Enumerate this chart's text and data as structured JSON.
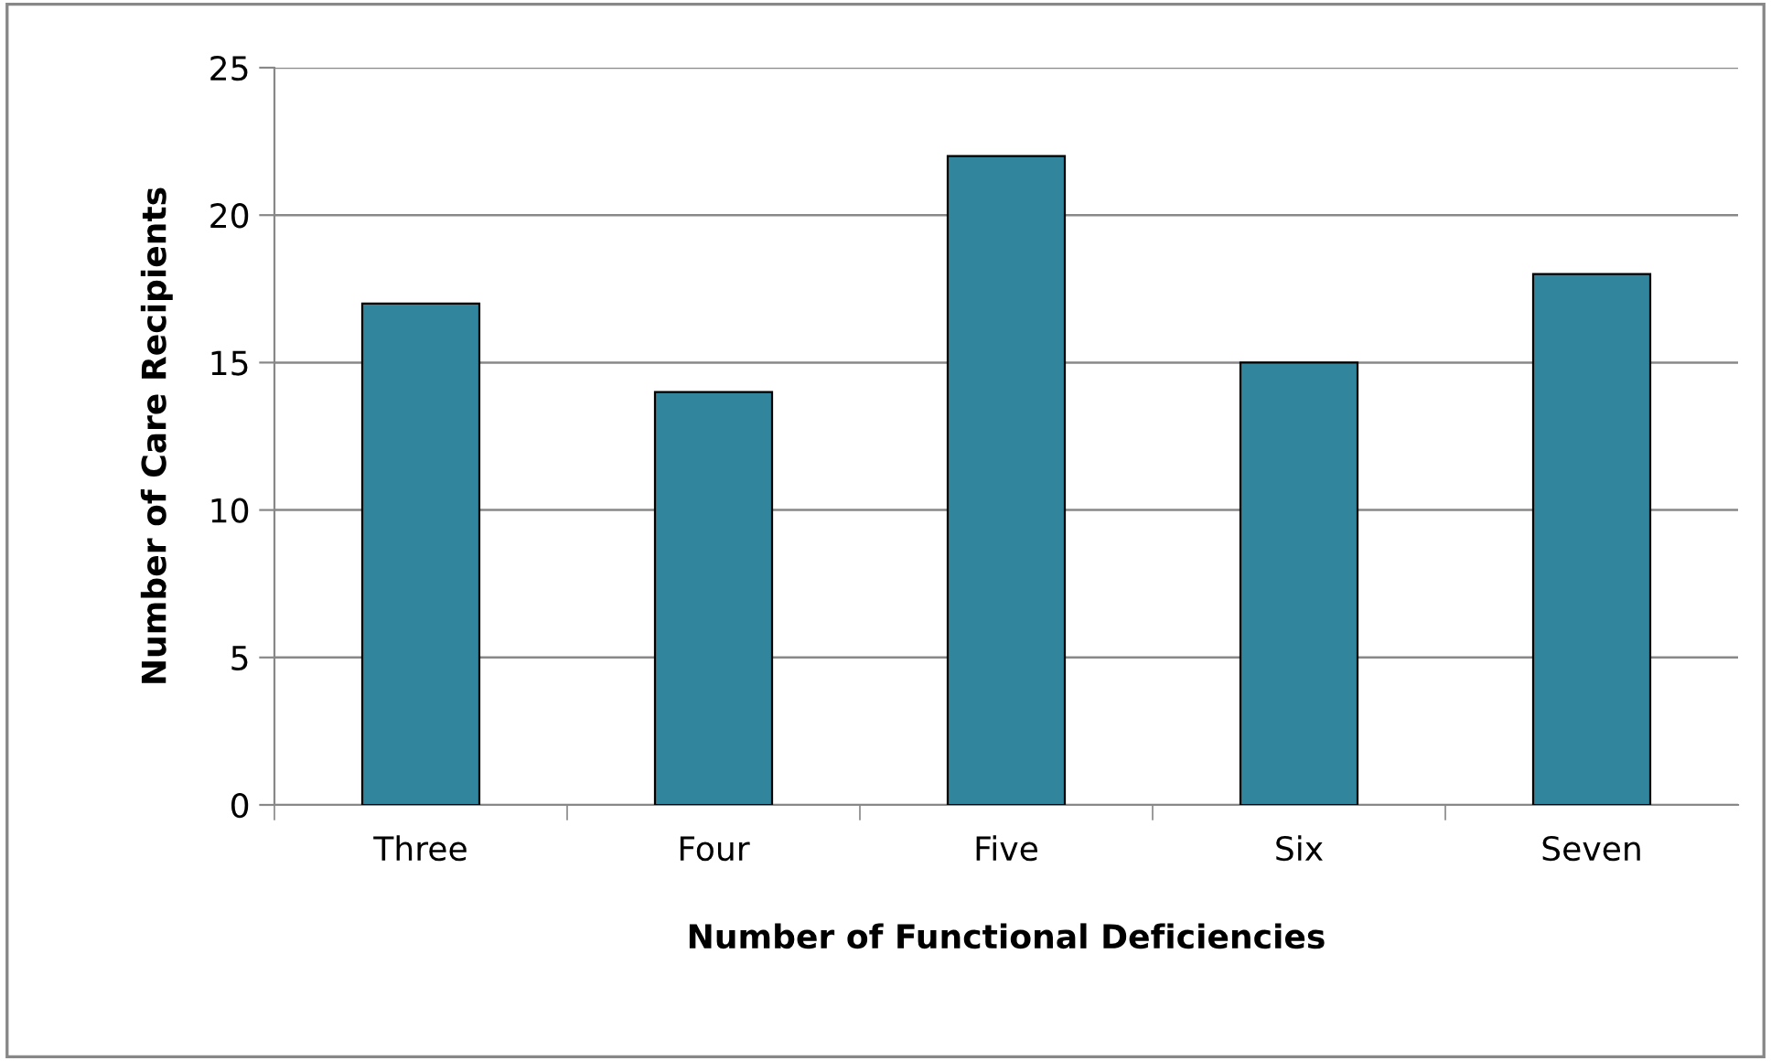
{
  "chart_data": {
    "type": "bar",
    "xlabel": "Number of Functional Deficiencies",
    "ylabel": "Number of Care Recipients",
    "categories": [
      "Three",
      "Four",
      "Five",
      "Six",
      "Seven"
    ],
    "values": [
      17,
      14,
      22,
      15,
      18
    ],
    "color": "#31859c",
    "ylim": [
      0,
      25
    ],
    "yticks": [
      0,
      5,
      10,
      15,
      20,
      25
    ],
    "grid": "y"
  }
}
